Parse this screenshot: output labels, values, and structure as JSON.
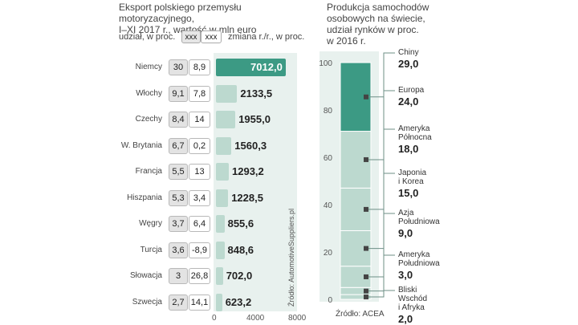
{
  "left": {
    "title_line1": "Eksport polskiego przemysłu motoryzacyjnego,",
    "title_line2": "I–XI 2017 r., wartość w mln euro",
    "legend_share": "udział, w proc.",
    "legend_change": "zmiana r./r., w proc.",
    "legend_box": "xxx",
    "source": "Źródło: AutomotiveSuppliers.pl"
  },
  "right": {
    "title_line1": "Produkcja samochodów",
    "title_line2": "osobowych na świecie,",
    "title_line3": "udział rynków w proc.",
    "title_line4": "w 2016 r.",
    "source": "Źródło: ACEA"
  },
  "colors": {
    "highlight": "#3c9a84",
    "bar": "#bcd9cf",
    "panel": "#e8f1ee",
    "outline": "#6d8f86"
  },
  "chart_data": [
    {
      "type": "bar",
      "orientation": "horizontal",
      "title": "Eksport polskiego przemysłu motoryzacyjnego, I–XI 2017 r., wartość w mln euro",
      "categories": [
        "Niemcy",
        "Włochy",
        "Czechy",
        "W. Brytania",
        "Francja",
        "Hiszpania",
        "Węgry",
        "Turcja",
        "Słowacja",
        "Szwecja"
      ],
      "values": [
        7012.0,
        2133.5,
        1955.0,
        1560.3,
        1293.2,
        1228.5,
        855.6,
        848.6,
        702.0,
        623.2
      ],
      "value_labels": [
        "7012,0",
        "2133,5",
        "1955,0",
        "1560,3",
        "1293,2",
        "1228,5",
        "855,6",
        "848,6",
        "702,0",
        "623,2"
      ],
      "share_pct": [
        "30",
        "9,1",
        "8,4",
        "6,7",
        "5,5",
        "5,3",
        "3,7",
        "3,6",
        "3",
        "2,7"
      ],
      "change_pct": [
        "8,9",
        "7,8",
        "14",
        "0,2",
        "13",
        "3,4",
        "6,4",
        "-8,9",
        "26,8",
        "14,1"
      ],
      "xlim": [
        0,
        8000
      ],
      "xticks": [
        "0",
        "4000",
        "8000"
      ]
    },
    {
      "type": "bar",
      "stacked": true,
      "title": "Produkcja samochodów osobowych na świecie, udział rynków w proc. w 2016 r.",
      "ylim": [
        0,
        100
      ],
      "yticks": [
        "0",
        "20",
        "40",
        "60",
        "80",
        "100"
      ],
      "segments_top_to_bottom": [
        {
          "name": "Chiny",
          "value": 29.0,
          "label": "29,0"
        },
        {
          "name": "Europa",
          "value": 24.0,
          "label": "24,0"
        },
        {
          "name": "Ameryka Północna",
          "value": 18.0,
          "label": "18,0",
          "lines": [
            "Ameryka",
            "Północna"
          ]
        },
        {
          "name": "Japonia i Korea",
          "value": 15.0,
          "label": "15,0",
          "lines": [
            "Japonia",
            "i Korea"
          ]
        },
        {
          "name": "Azja Południowa",
          "value": 9.0,
          "label": "9,0",
          "lines": [
            "Azja",
            "Południowa"
          ]
        },
        {
          "name": "Ameryka Południowa",
          "value": 3.0,
          "label": "3,0",
          "lines": [
            "Ameryka",
            "Południowa"
          ]
        },
        {
          "name": "Bliski Wschód i Afryka",
          "value": 2.0,
          "label": "2,0",
          "lines": [
            "Bliski",
            "Wschód",
            "i Afryka"
          ]
        }
      ]
    }
  ]
}
